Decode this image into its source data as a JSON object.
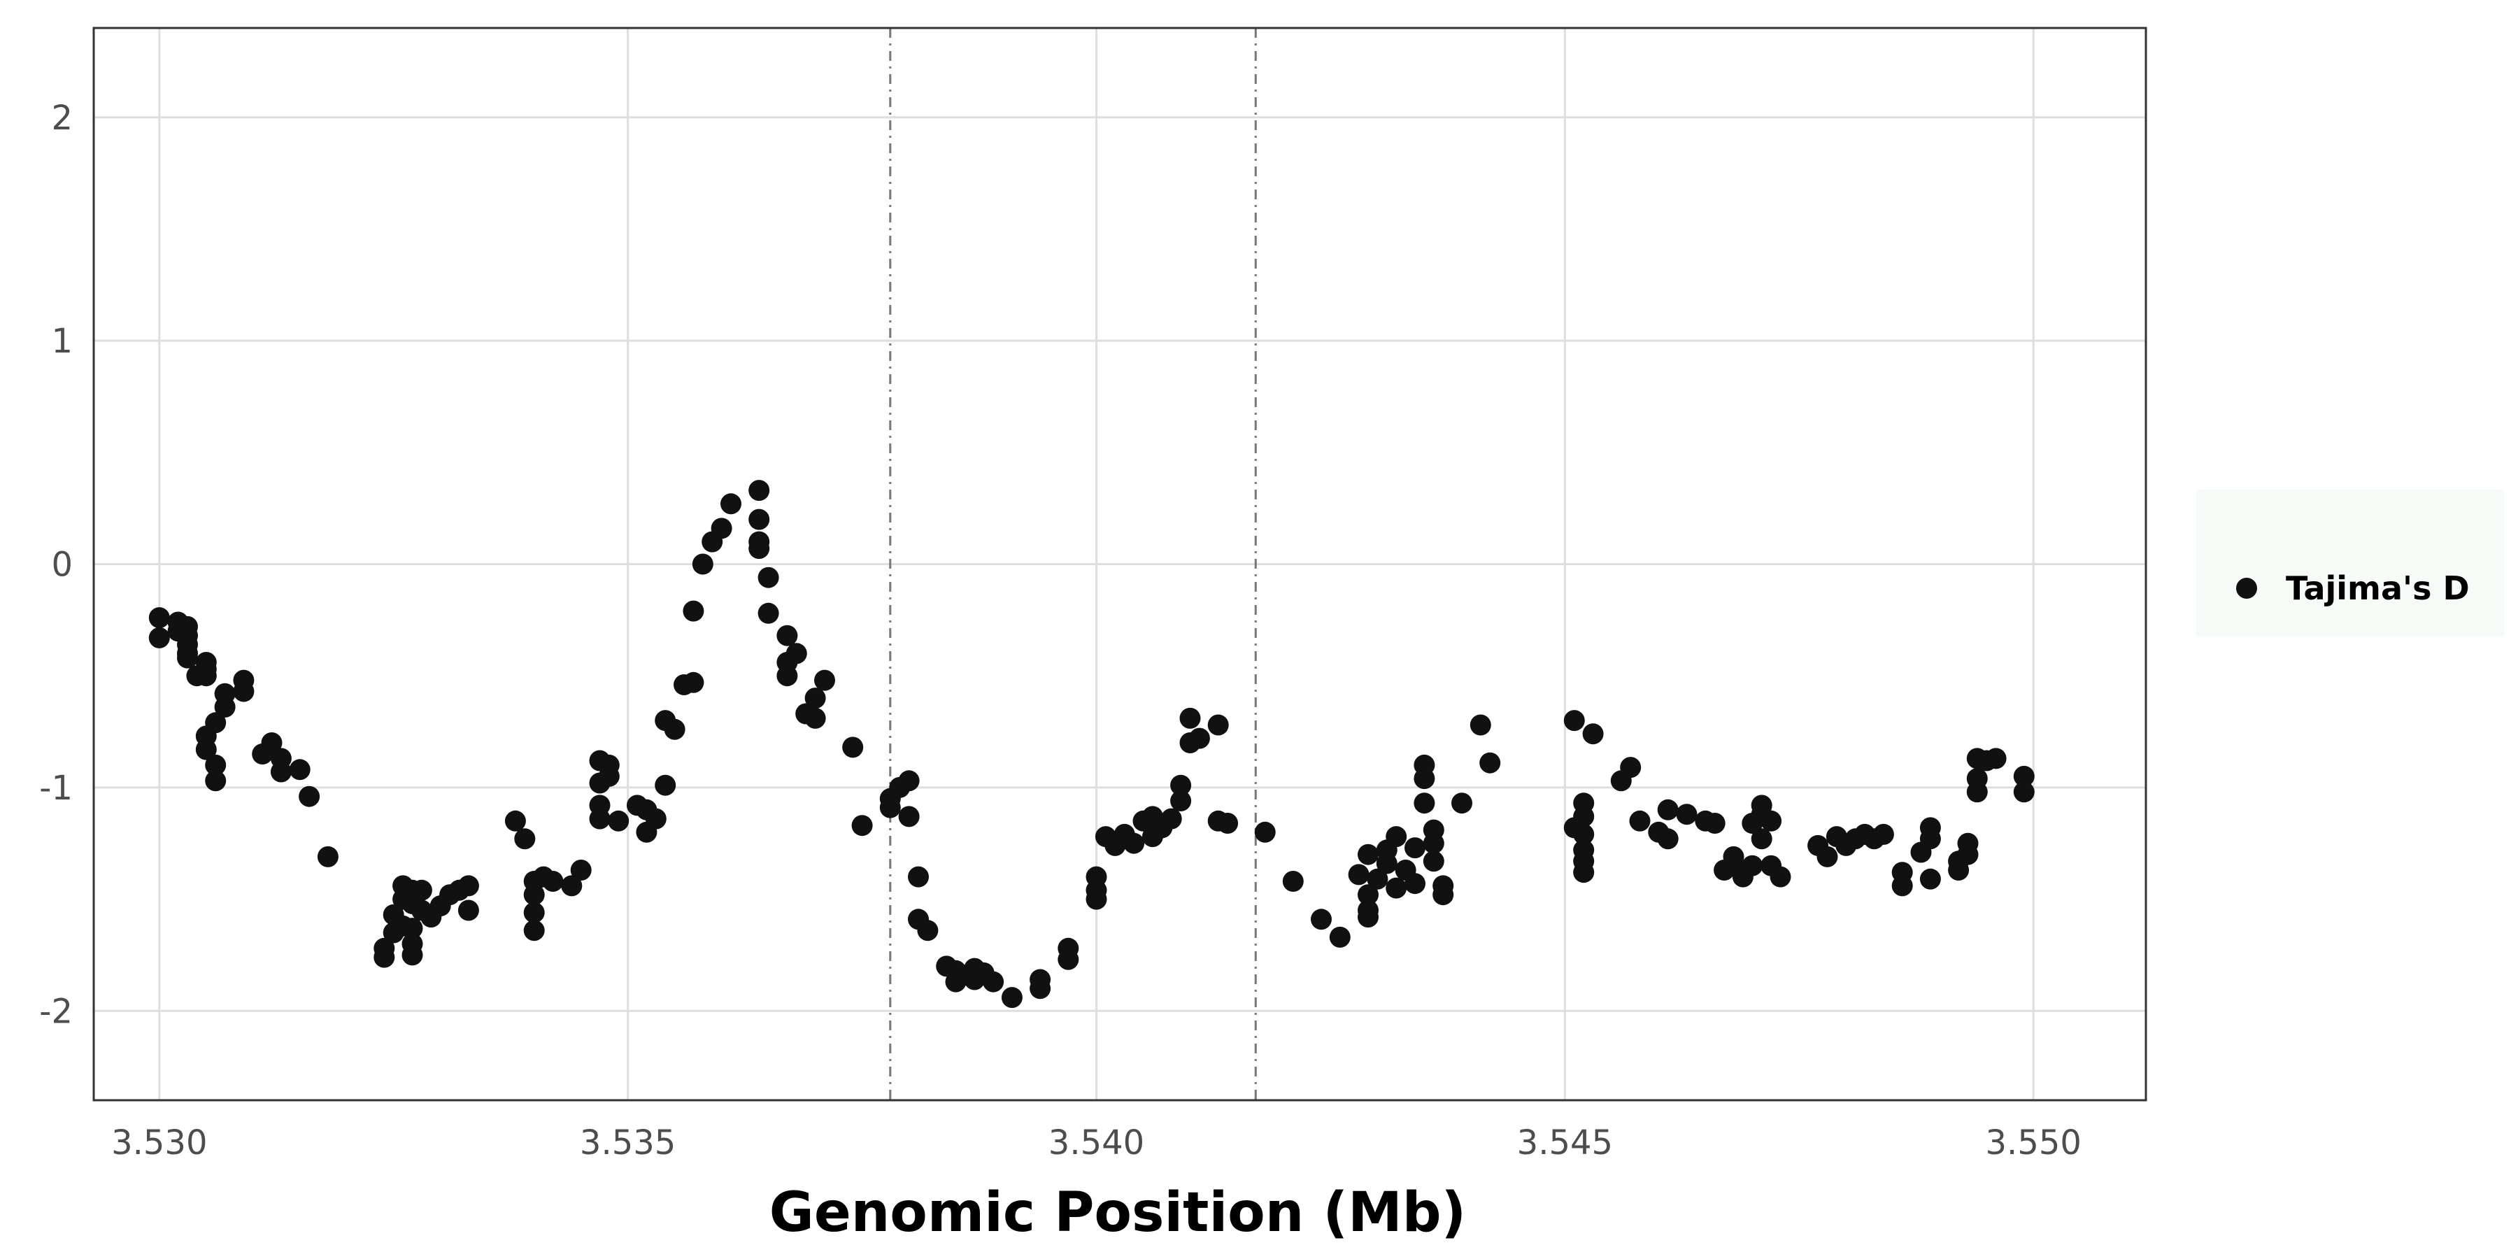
{
  "chart_data": {
    "type": "scatter",
    "title": "",
    "xlabel": "Genomic Position (Mb)",
    "ylabel": "",
    "xlim": [
      3.5293,
      3.5512
    ],
    "ylim": [
      -2.4,
      2.4
    ],
    "x_ticks": [
      "3.530",
      "3.535",
      "3.540",
      "3.545",
      "3.550"
    ],
    "x_tick_values": [
      3.53,
      3.535,
      3.54,
      3.545,
      3.55
    ],
    "y_ticks": [
      "-2",
      "-1",
      "0",
      "1",
      "2"
    ],
    "y_tick_values": [
      -2,
      -1,
      0,
      1,
      2
    ],
    "grid": true,
    "legend_position": "right",
    "vlines": [
      3.5378,
      3.5417
    ],
    "colors": {
      "points": "#111111",
      "grid": "#dedede",
      "panel_border": "#333333",
      "vline": "#777777",
      "legend_bg": "#f7fbf7"
    },
    "series": [
      {
        "name": "Tajima's D",
        "points": [
          [
            3.53,
            -0.24
          ],
          [
            3.53,
            -0.33
          ],
          [
            3.5302,
            -0.26
          ],
          [
            3.5302,
            -0.3
          ],
          [
            3.5303,
            -0.28
          ],
          [
            3.5303,
            -0.32
          ],
          [
            3.5303,
            -0.36
          ],
          [
            3.5303,
            -0.4
          ],
          [
            3.5303,
            -0.42
          ],
          [
            3.5304,
            -0.5
          ],
          [
            3.5305,
            -0.47
          ],
          [
            3.5305,
            -0.44
          ],
          [
            3.5305,
            -0.5
          ],
          [
            3.5305,
            -0.77
          ],
          [
            3.5305,
            -0.83
          ],
          [
            3.5306,
            -0.9
          ],
          [
            3.5306,
            -0.97
          ],
          [
            3.5306,
            -0.71
          ],
          [
            3.5307,
            -0.64
          ],
          [
            3.5307,
            -0.58
          ],
          [
            3.5309,
            -0.52
          ],
          [
            3.5309,
            -0.57
          ],
          [
            3.5311,
            -0.85
          ],
          [
            3.5312,
            -0.8
          ],
          [
            3.5313,
            -0.87
          ],
          [
            3.5313,
            -0.93
          ],
          [
            3.5315,
            -0.92
          ],
          [
            3.5316,
            -1.04
          ],
          [
            3.5318,
            -1.31
          ],
          [
            3.5324,
            -1.72
          ],
          [
            3.5324,
            -1.76
          ],
          [
            3.5325,
            -1.65
          ],
          [
            3.5325,
            -1.57
          ],
          [
            3.5326,
            -1.44
          ],
          [
            3.5326,
            -1.5
          ],
          [
            3.5326,
            -1.62
          ],
          [
            3.5327,
            -1.52
          ],
          [
            3.5327,
            -1.46
          ],
          [
            3.5327,
            -1.63
          ],
          [
            3.5327,
            -1.7
          ],
          [
            3.5327,
            -1.75
          ],
          [
            3.5328,
            -1.46
          ],
          [
            3.5328,
            -1.55
          ],
          [
            3.5329,
            -1.58
          ],
          [
            3.533,
            -1.53
          ],
          [
            3.5331,
            -1.48
          ],
          [
            3.5332,
            -1.46
          ],
          [
            3.5333,
            -1.44
          ],
          [
            3.5333,
            -1.55
          ],
          [
            3.5338,
            -1.15
          ],
          [
            3.5339,
            -1.23
          ],
          [
            3.534,
            -1.42
          ],
          [
            3.534,
            -1.48
          ],
          [
            3.534,
            -1.56
          ],
          [
            3.534,
            -1.64
          ],
          [
            3.5341,
            -1.4
          ],
          [
            3.5342,
            -1.42
          ],
          [
            3.5344,
            -1.44
          ],
          [
            3.5345,
            -1.37
          ],
          [
            3.5347,
            -0.88
          ],
          [
            3.5347,
            -0.98
          ],
          [
            3.5347,
            -1.08
          ],
          [
            3.5347,
            -1.14
          ],
          [
            3.5348,
            -0.9
          ],
          [
            3.5348,
            -0.95
          ],
          [
            3.5349,
            -1.15
          ],
          [
            3.5351,
            -1.08
          ],
          [
            3.5352,
            -1.1
          ],
          [
            3.5352,
            -1.2
          ],
          [
            3.5353,
            -1.14
          ],
          [
            3.5354,
            -0.99
          ],
          [
            3.5354,
            -0.7
          ],
          [
            3.5355,
            -0.74
          ],
          [
            3.5356,
            -0.54
          ],
          [
            3.5357,
            -0.53
          ],
          [
            3.5357,
            -0.21
          ],
          [
            3.5358,
            0.0
          ],
          [
            3.5359,
            0.1
          ],
          [
            3.536,
            0.16
          ],
          [
            3.5361,
            0.27
          ],
          [
            3.5364,
            0.33
          ],
          [
            3.5364,
            0.2
          ],
          [
            3.5364,
            0.1
          ],
          [
            3.5364,
            0.07
          ],
          [
            3.5365,
            -0.06
          ],
          [
            3.5365,
            -0.22
          ],
          [
            3.5367,
            -0.32
          ],
          [
            3.5367,
            -0.44
          ],
          [
            3.5367,
            -0.5
          ],
          [
            3.5368,
            -0.4
          ],
          [
            3.5369,
            -0.67
          ],
          [
            3.537,
            -0.6
          ],
          [
            3.537,
            -0.69
          ],
          [
            3.5371,
            -0.52
          ],
          [
            3.5374,
            -0.82
          ],
          [
            3.5375,
            -1.17
          ],
          [
            3.5378,
            -1.05
          ],
          [
            3.5378,
            -1.09
          ],
          [
            3.5379,
            -1.0
          ],
          [
            3.538,
            -0.97
          ],
          [
            3.538,
            -1.13
          ],
          [
            3.5381,
            -1.4
          ],
          [
            3.5381,
            -1.59
          ],
          [
            3.5382,
            -1.64
          ],
          [
            3.5384,
            -1.8
          ],
          [
            3.5385,
            -1.82
          ],
          [
            3.5385,
            -1.87
          ],
          [
            3.5386,
            -1.84
          ],
          [
            3.5387,
            -1.81
          ],
          [
            3.5387,
            -1.86
          ],
          [
            3.5388,
            -1.83
          ],
          [
            3.5389,
            -1.87
          ],
          [
            3.5391,
            -1.94
          ],
          [
            3.5394,
            -1.86
          ],
          [
            3.5394,
            -1.9
          ],
          [
            3.5397,
            -1.72
          ],
          [
            3.5397,
            -1.77
          ],
          [
            3.54,
            -1.4
          ],
          [
            3.54,
            -1.46
          ],
          [
            3.54,
            -1.5
          ],
          [
            3.5401,
            -1.22
          ],
          [
            3.5402,
            -1.26
          ],
          [
            3.5403,
            -1.21
          ],
          [
            3.5404,
            -1.25
          ],
          [
            3.5405,
            -1.15
          ],
          [
            3.5406,
            -1.13
          ],
          [
            3.5406,
            -1.22
          ],
          [
            3.5407,
            -1.18
          ],
          [
            3.5408,
            -1.14
          ],
          [
            3.5409,
            -1.06
          ],
          [
            3.5409,
            -0.99
          ],
          [
            3.541,
            -0.8
          ],
          [
            3.541,
            -0.69
          ],
          [
            3.5411,
            -0.78
          ],
          [
            3.5413,
            -0.72
          ],
          [
            3.5413,
            -1.15
          ],
          [
            3.5414,
            -1.16
          ],
          [
            3.5418,
            -1.2
          ],
          [
            3.5421,
            -1.42
          ],
          [
            3.5424,
            -1.59
          ],
          [
            3.5426,
            -1.67
          ],
          [
            3.5428,
            -1.39
          ],
          [
            3.5429,
            -1.48
          ],
          [
            3.5429,
            -1.55
          ],
          [
            3.5429,
            -1.58
          ],
          [
            3.5429,
            -1.3
          ],
          [
            3.543,
            -1.41
          ],
          [
            3.5431,
            -1.28
          ],
          [
            3.5431,
            -1.34
          ],
          [
            3.5432,
            -1.45
          ],
          [
            3.5432,
            -1.22
          ],
          [
            3.5433,
            -1.37
          ],
          [
            3.5434,
            -1.27
          ],
          [
            3.5434,
            -1.43
          ],
          [
            3.5435,
            -0.9
          ],
          [
            3.5435,
            -0.96
          ],
          [
            3.5435,
            -1.07
          ],
          [
            3.5436,
            -1.19
          ],
          [
            3.5436,
            -1.25
          ],
          [
            3.5436,
            -1.33
          ],
          [
            3.5437,
            -1.44
          ],
          [
            3.5437,
            -1.48
          ],
          [
            3.5439,
            -1.07
          ],
          [
            3.5441,
            -0.72
          ],
          [
            3.5442,
            -0.89
          ],
          [
            3.5451,
            -0.7
          ],
          [
            3.5451,
            -1.18
          ],
          [
            3.5452,
            -1.07
          ],
          [
            3.5452,
            -1.13
          ],
          [
            3.5452,
            -1.21
          ],
          [
            3.5452,
            -1.28
          ],
          [
            3.5452,
            -1.33
          ],
          [
            3.5452,
            -1.38
          ],
          [
            3.5453,
            -0.76
          ],
          [
            3.5456,
            -0.97
          ],
          [
            3.5457,
            -0.91
          ],
          [
            3.5458,
            -1.15
          ],
          [
            3.546,
            -1.2
          ],
          [
            3.5461,
            -1.1
          ],
          [
            3.5461,
            -1.23
          ],
          [
            3.5463,
            -1.12
          ],
          [
            3.5465,
            -1.15
          ],
          [
            3.5466,
            -1.16
          ],
          [
            3.5467,
            -1.37
          ],
          [
            3.5468,
            -1.31
          ],
          [
            3.5468,
            -1.34
          ],
          [
            3.5469,
            -1.4
          ],
          [
            3.547,
            -1.16
          ],
          [
            3.547,
            -1.35
          ],
          [
            3.5471,
            -1.23
          ],
          [
            3.5471,
            -1.08
          ],
          [
            3.5471,
            -1.12
          ],
          [
            3.5472,
            -1.15
          ],
          [
            3.5472,
            -1.35
          ],
          [
            3.5473,
            -1.4
          ],
          [
            3.5477,
            -1.26
          ],
          [
            3.5478,
            -1.31
          ],
          [
            3.5479,
            -1.22
          ],
          [
            3.548,
            -1.26
          ],
          [
            3.5481,
            -1.23
          ],
          [
            3.5482,
            -1.21
          ],
          [
            3.5483,
            -1.23
          ],
          [
            3.5484,
            -1.21
          ],
          [
            3.5486,
            -1.38
          ],
          [
            3.5486,
            -1.44
          ],
          [
            3.5488,
            -1.29
          ],
          [
            3.5489,
            -1.18
          ],
          [
            3.5489,
            -1.23
          ],
          [
            3.5489,
            -1.41
          ],
          [
            3.5492,
            -1.33
          ],
          [
            3.5492,
            -1.37
          ],
          [
            3.5493,
            -1.25
          ],
          [
            3.5493,
            -1.3
          ],
          [
            3.5494,
            -0.87
          ],
          [
            3.5494,
            -0.96
          ],
          [
            3.5494,
            -1.02
          ],
          [
            3.5495,
            -0.88
          ],
          [
            3.5496,
            -0.87
          ],
          [
            3.5499,
            -0.95
          ],
          [
            3.5499,
            -1.02
          ]
        ]
      }
    ]
  }
}
